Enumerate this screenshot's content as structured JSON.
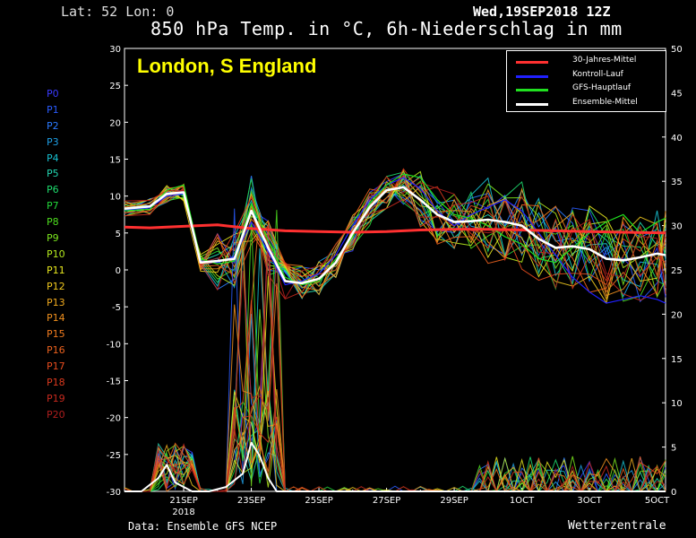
{
  "header": {
    "coords": "Lat: 52  Lon: 0",
    "date": "Wed,19SEP2018 12Z",
    "title": "850 hPa Temp. in °C, 6h-Niederschlag in mm"
  },
  "location": "London, S England",
  "footer": {
    "source": "Data: Ensemble GFS NCEP",
    "brand": "Wetterzentrale"
  },
  "members": [
    {
      "label": "P0",
      "color": "#3a3aff"
    },
    {
      "label": "P1",
      "color": "#2a5cff"
    },
    {
      "label": "P2",
      "color": "#2a7aff"
    },
    {
      "label": "P3",
      "color": "#1ea0e6"
    },
    {
      "label": "P4",
      "color": "#17c0d0"
    },
    {
      "label": "P5",
      "color": "#22d6b0"
    },
    {
      "label": "P6",
      "color": "#1edc6e"
    },
    {
      "label": "P7",
      "color": "#22d83a"
    },
    {
      "label": "P8",
      "color": "#4ede1e"
    },
    {
      "label": "P9",
      "color": "#7ce61e"
    },
    {
      "label": "P10",
      "color": "#b4ea1e"
    },
    {
      "label": "P11",
      "color": "#e8e81e"
    },
    {
      "label": "P12",
      "color": "#f0c81e"
    },
    {
      "label": "P13",
      "color": "#f0aa1e"
    },
    {
      "label": "P14",
      "color": "#f0901e"
    },
    {
      "label": "P15",
      "color": "#f07a1e"
    },
    {
      "label": "P16",
      "color": "#ec621e"
    },
    {
      "label": "P17",
      "color": "#e64c1e"
    },
    {
      "label": "P18",
      "color": "#dc3a1e"
    },
    {
      "label": "P19",
      "color": "#c82a1e"
    },
    {
      "label": "P20",
      "color": "#b01e1e"
    }
  ],
  "legend": [
    {
      "label": "30-Jahres-Mittel",
      "color": "#ff3030"
    },
    {
      "label": "Kontroll-Lauf",
      "color": "#2020ff"
    },
    {
      "label": "GFS-Hauptlauf",
      "color": "#20e020"
    },
    {
      "label": "Ensemble-Mittel",
      "color": "#ffffff"
    }
  ],
  "chart_data": {
    "type": "line",
    "x_ticks": [
      "21SEP",
      "23SEP",
      "25SEP",
      "27SEP",
      "29SEP",
      "1OCT",
      "3OCT",
      "5OCT"
    ],
    "x_tick_days": [
      2,
      4,
      6,
      8,
      10,
      12,
      14,
      16
    ],
    "x_year_label": "2018",
    "x_range_days": [
      0.25,
      16.25
    ],
    "y_left": {
      "min": -30,
      "max": 30,
      "ticks": [
        30,
        25,
        20,
        15,
        10,
        5,
        0,
        -5,
        -10,
        -15,
        -20,
        -25,
        -30
      ],
      "unit": "°C"
    },
    "y_right": {
      "min": 0,
      "max": 50,
      "ticks": [
        50,
        45,
        40,
        35,
        30,
        25,
        20,
        15,
        10,
        5,
        0
      ],
      "unit": "mm"
    },
    "climate_mean": {
      "days": [
        0.25,
        1,
        2,
        3,
        4,
        5,
        6,
        7,
        8,
        9,
        10,
        11,
        12,
        13,
        14,
        15,
        16.25
      ],
      "values": [
        5.8,
        5.7,
        5.9,
        6.1,
        5.6,
        5.3,
        5.2,
        5.1,
        5.2,
        5.4,
        5.5,
        5.5,
        5.4,
        5.3,
        5.2,
        5.1,
        5.0
      ]
    },
    "ensemble_mean": {
      "days": [
        0.25,
        1,
        1.5,
        2,
        2.5,
        3,
        3.5,
        4,
        4.5,
        5,
        5.5,
        6,
        6.5,
        7,
        7.5,
        8,
        8.5,
        9,
        9.5,
        10,
        10.5,
        11,
        11.5,
        12,
        12.5,
        13,
        13.5,
        14,
        14.5,
        15,
        15.5,
        16,
        16.25
      ],
      "values": [
        8.3,
        8.6,
        10.3,
        10.5,
        1.0,
        1.2,
        1.5,
        8.0,
        3.0,
        -1.5,
        -1.8,
        -1.2,
        1.0,
        5.0,
        8.5,
        10.8,
        11.2,
        9.5,
        7.5,
        6.5,
        6.6,
        6.8,
        6.5,
        6.0,
        4.2,
        3.0,
        3.2,
        2.8,
        1.5,
        1.3,
        1.7,
        2.2,
        2.0
      ]
    },
    "control_run": {
      "days": [
        0.25,
        1,
        1.5,
        2,
        2.5,
        3,
        3.5,
        4,
        4.5,
        5,
        5.5,
        6,
        6.5,
        7,
        7.5,
        8,
        8.5,
        9,
        9.5,
        10,
        10.5,
        11,
        11.5,
        12,
        12.5,
        13,
        13.5,
        14,
        14.5,
        15,
        15.5,
        16,
        16.25
      ],
      "values": [
        8.1,
        8.4,
        10.0,
        10.3,
        1.2,
        1.0,
        1.8,
        6.5,
        2.5,
        -2.0,
        -1.5,
        -0.5,
        2.0,
        6.0,
        9.5,
        11.5,
        12.5,
        11.0,
        8.0,
        6.0,
        7.5,
        8.5,
        9.5,
        8.0,
        5.0,
        2.0,
        -1.0,
        -3.0,
        -4.5,
        -4.0,
        -3.5,
        -4.0,
        -4.5
      ]
    },
    "main_run": {
      "days": [
        0.25,
        1,
        1.5,
        2,
        2.5,
        3,
        3.5,
        4,
        4.5,
        5,
        5.5,
        6,
        6.5,
        7,
        7.5,
        8,
        8.5,
        9,
        9.5,
        10,
        10.5,
        11,
        11.5,
        12,
        12.5,
        13,
        13.5,
        14,
        14.5,
        15,
        15.5,
        16,
        16.25
      ],
      "values": [
        8.0,
        8.2,
        10.8,
        11.5,
        1.5,
        0.8,
        1.2,
        9.0,
        4.0,
        -1.0,
        -2.0,
        -1.5,
        1.5,
        4.5,
        9.0,
        11.5,
        13.0,
        12.5,
        9.5,
        7.5,
        7.0,
        6.0,
        4.5,
        3.5,
        1.5,
        1.0,
        3.0,
        5.0,
        6.5,
        7.5,
        5.0,
        6.5,
        7.0
      ]
    },
    "ensemble_precip_mean_mm": {
      "days": [
        0.25,
        0.75,
        1.25,
        1.5,
        1.75,
        2.25,
        2.75,
        3.25,
        3.75,
        4.0,
        4.25,
        4.5,
        4.75,
        5.25,
        6.0,
        16.25
      ],
      "values": [
        0,
        0,
        1.5,
        3,
        1,
        0,
        0,
        0.5,
        2,
        5.5,
        4,
        1.5,
        0,
        0,
        0,
        0
      ]
    }
  }
}
